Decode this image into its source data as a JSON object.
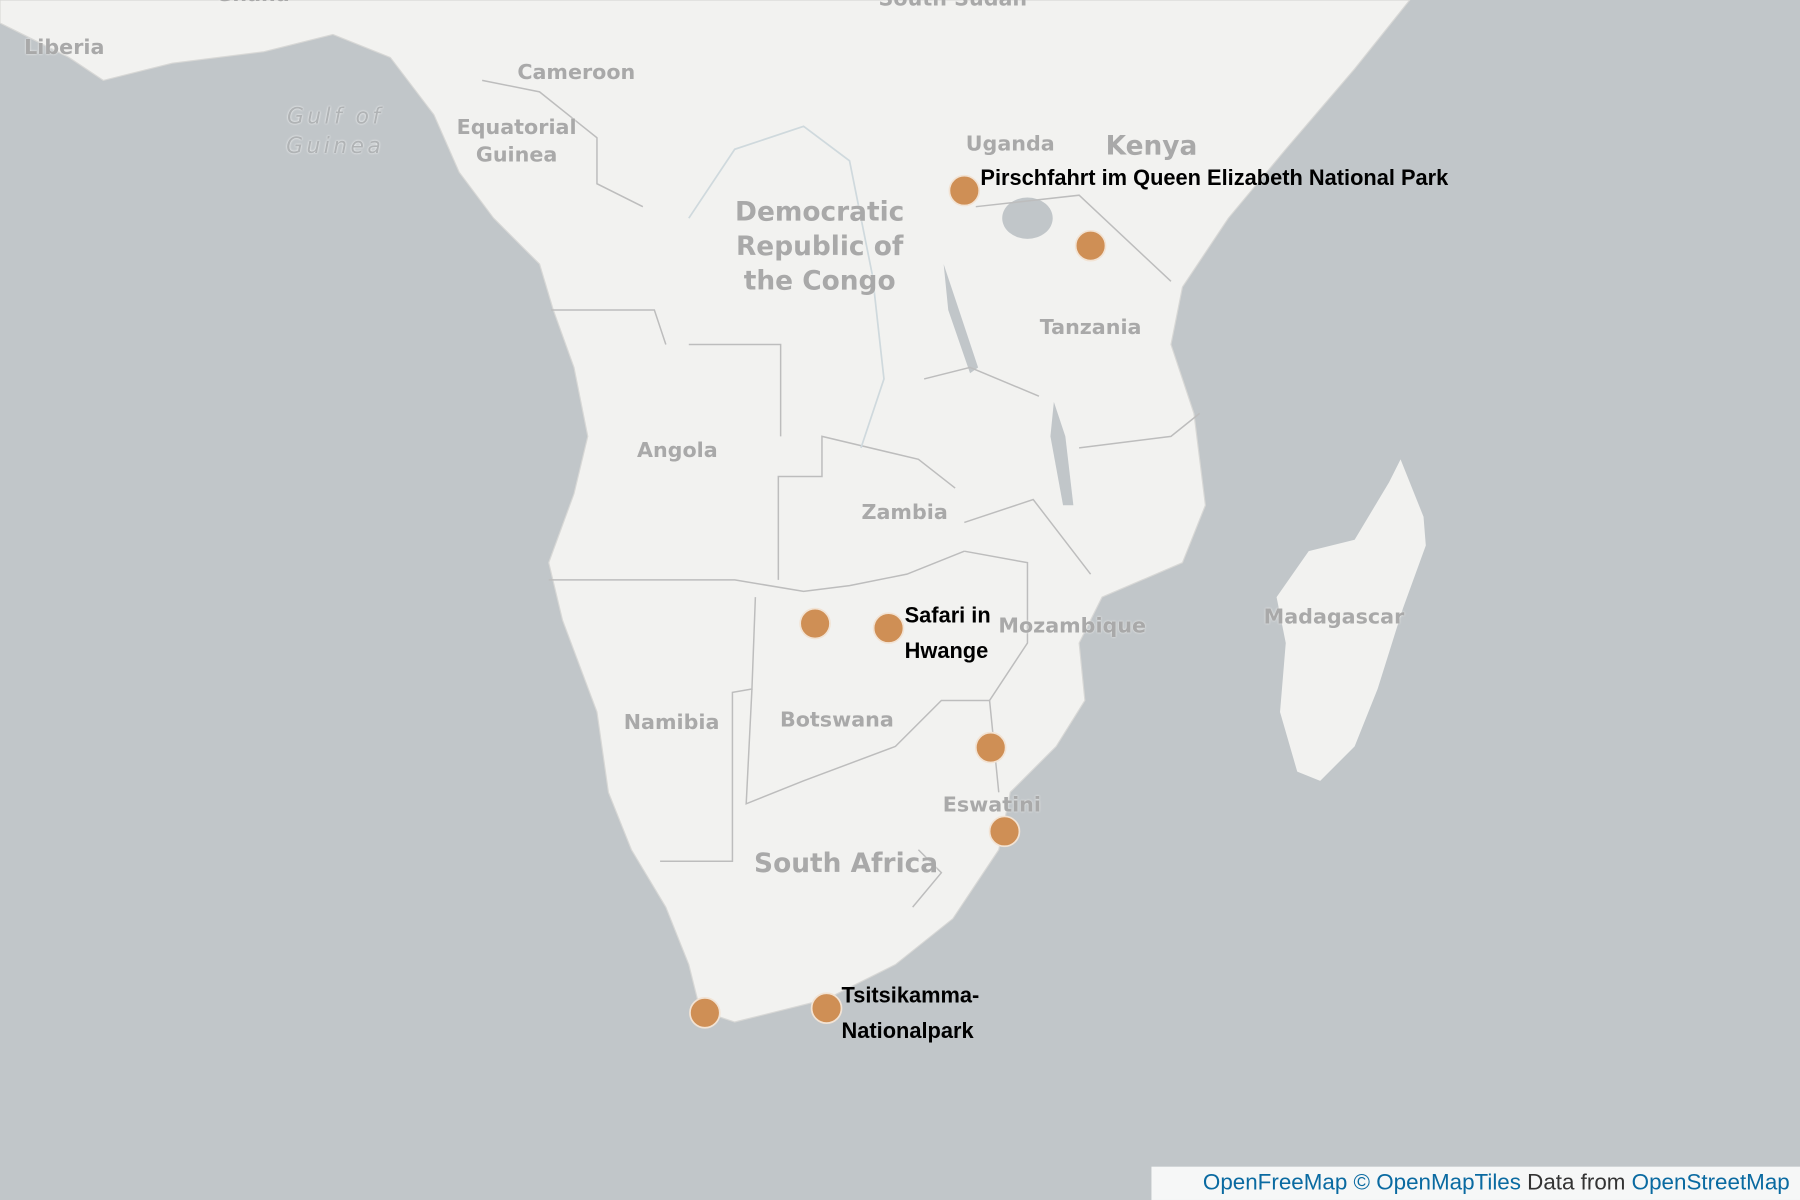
{
  "map": {
    "place_labels": [
      {
        "text": "Ghana",
        "style": "country"
      },
      {
        "text": "South Sudan",
        "style": "country"
      },
      {
        "text": "Liberia",
        "style": "country"
      },
      {
        "text": "Cameroon",
        "style": "country"
      },
      {
        "text": "Gulf of Guinea",
        "style": "water"
      },
      {
        "text": "Equatorial Guinea",
        "style": "country"
      },
      {
        "text": "Uganda",
        "style": "country"
      },
      {
        "text": "Kenya",
        "style": "country-large"
      },
      {
        "text": "Democratic Republic of the Congo",
        "style": "country-large"
      },
      {
        "text": "Tanzania",
        "style": "country"
      },
      {
        "text": "Angola",
        "style": "country"
      },
      {
        "text": "Zambia",
        "style": "country"
      },
      {
        "text": "Mozambique",
        "style": "country"
      },
      {
        "text": "Madagascar",
        "style": "country"
      },
      {
        "text": "Namibia",
        "style": "country"
      },
      {
        "text": "Botswana",
        "style": "country"
      },
      {
        "text": "Eswatini",
        "style": "country"
      },
      {
        "text": "South Africa",
        "style": "country-large"
      }
    ],
    "marker_labels": [
      "Pirschfahrt im Queen Elizabeth National Park",
      "Safari in Hwange",
      "Tsitsikamma-Nationalpark"
    ]
  },
  "attribution": {
    "links": [
      "OpenFreeMap",
      "© OpenMapTiles"
    ],
    "text": "Data from",
    "source": "OpenStreetMap"
  }
}
